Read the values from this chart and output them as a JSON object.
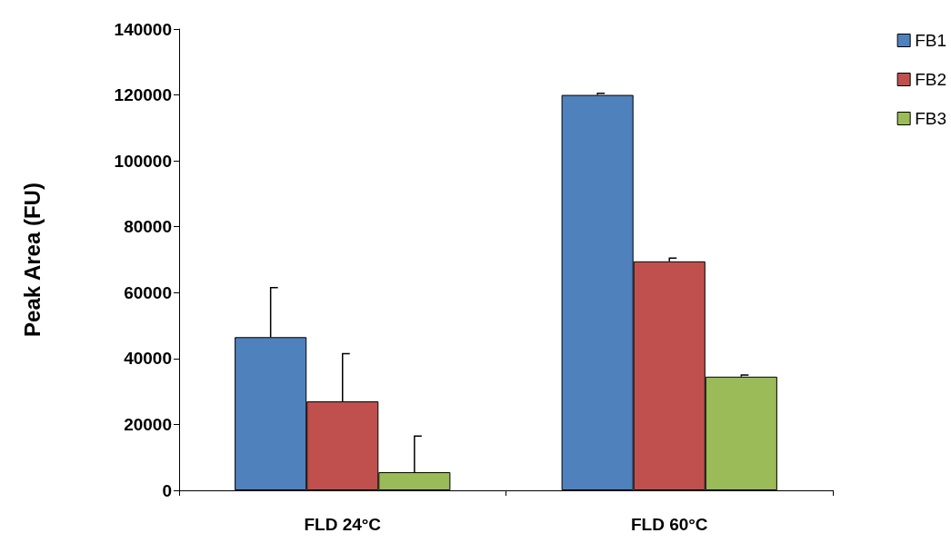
{
  "chart_data": {
    "type": "bar",
    "ylabel": "Peak Area (FU)",
    "categories": [
      "FLD 24°C",
      "FLD 60°C"
    ],
    "series": [
      {
        "name": "FB1",
        "color": "#4f81bd",
        "values": [
          46500,
          120000
        ],
        "errors": [
          [
            46500,
            61500
          ],
          [
            120000,
            120500
          ]
        ]
      },
      {
        "name": "FB2",
        "color": "#c0504d",
        "values": [
          27000,
          69500
        ],
        "errors": [
          [
            27000,
            41500
          ],
          [
            69500,
            70500
          ]
        ]
      },
      {
        "name": "FB3",
        "color": "#9bbb59",
        "values": [
          5500,
          34500
        ],
        "errors": [
          [
            5500,
            16500
          ],
          [
            34500,
            35000
          ]
        ]
      }
    ],
    "ylim": [
      0,
      140000
    ],
    "yticks": [
      0,
      20000,
      40000,
      60000,
      80000,
      100000,
      120000,
      140000
    ],
    "grid": false,
    "legend": "top right"
  }
}
